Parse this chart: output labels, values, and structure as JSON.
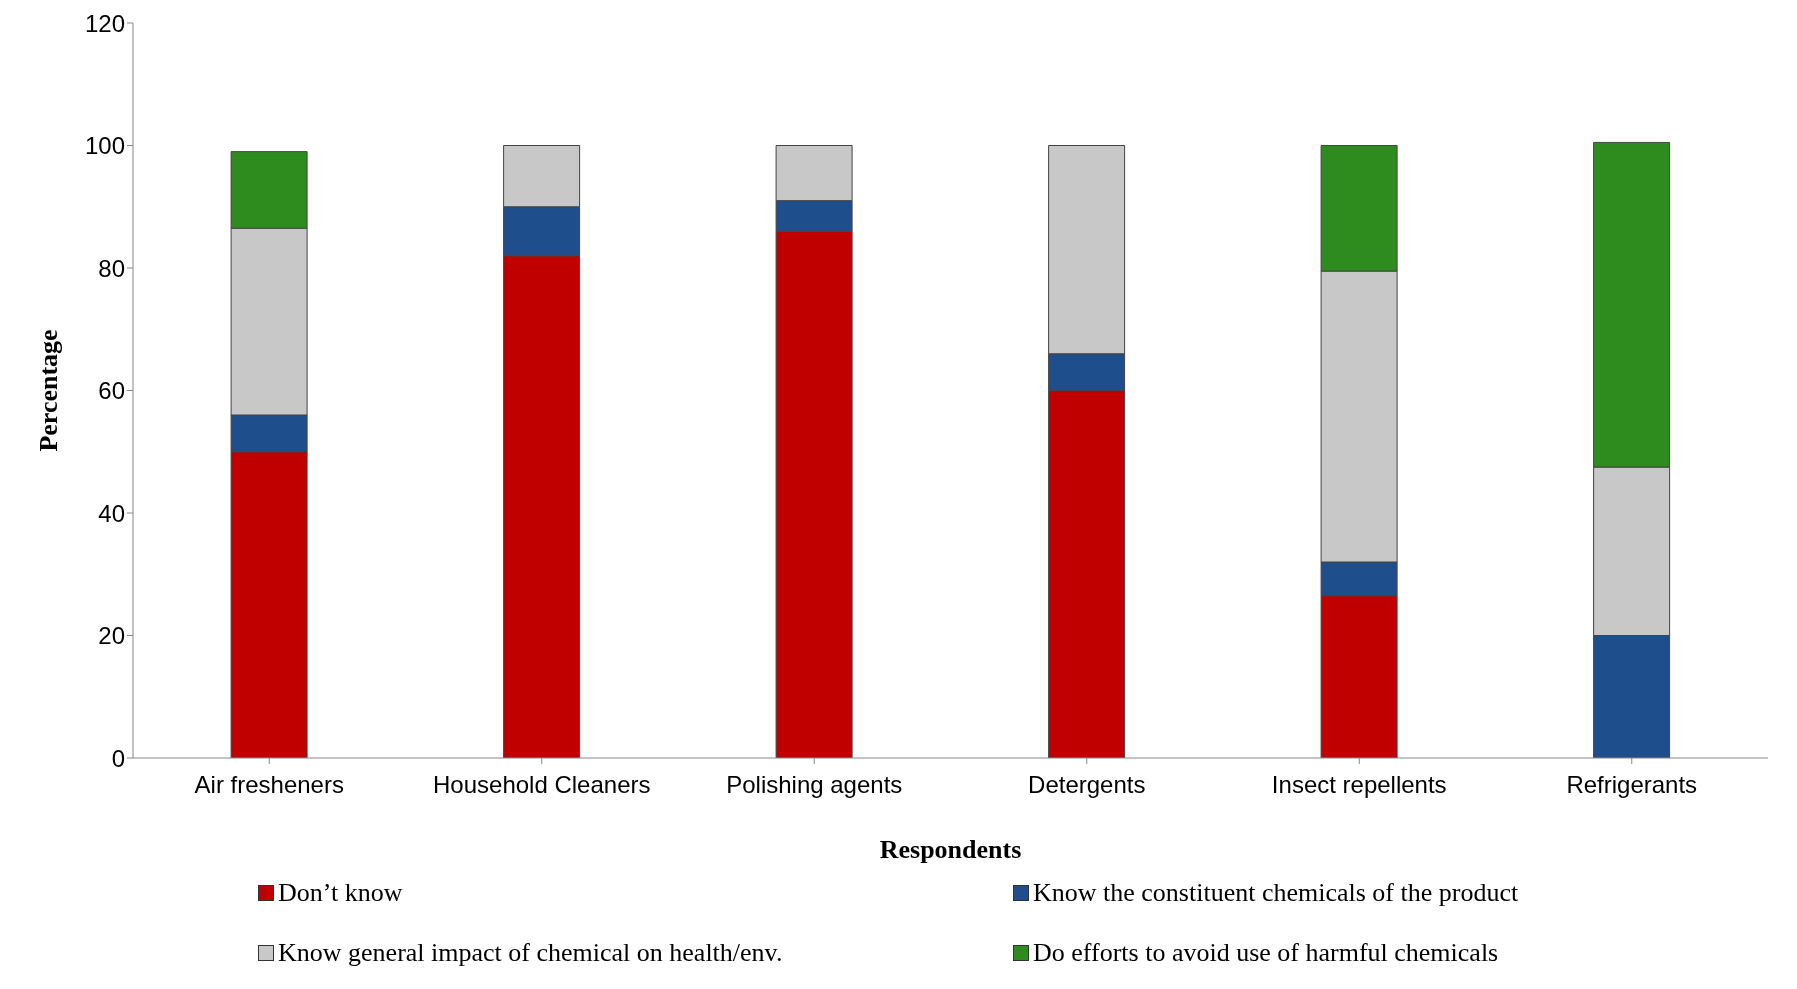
{
  "chart_data": {
    "type": "bar",
    "stacked": true,
    "xlabel": "Respondents",
    "ylabel": "Percentage",
    "categories": [
      "Air fresheners",
      "Household Cleaners",
      "Polishing agents",
      "Detergents",
      "Insect repellents",
      "Refrigerants"
    ],
    "ylim": [
      0,
      120
    ],
    "yticks": [
      0,
      20,
      40,
      60,
      80,
      100,
      120
    ],
    "grid": false,
    "legend": "bottom",
    "series": [
      {
        "name": "Don’t know",
        "color": "#c00000",
        "values": [
          50,
          82,
          86,
          60,
          26.5,
          0
        ]
      },
      {
        "name": "Know the constituent chemicals of the product",
        "color": "#1f4e8c",
        "values": [
          6,
          8,
          5,
          6,
          5.5,
          20
        ]
      },
      {
        "name": "Know general impact of chemical on health/env.",
        "color": "#c8c8c8",
        "values": [
          30.5,
          10,
          9,
          34,
          47.5,
          27.5
        ]
      },
      {
        "name": "Do efforts to avoid use of harmful chemicals",
        "color": "#2e8b1e",
        "values": [
          12.5,
          0,
          0,
          0,
          20.5,
          53
        ]
      }
    ]
  }
}
